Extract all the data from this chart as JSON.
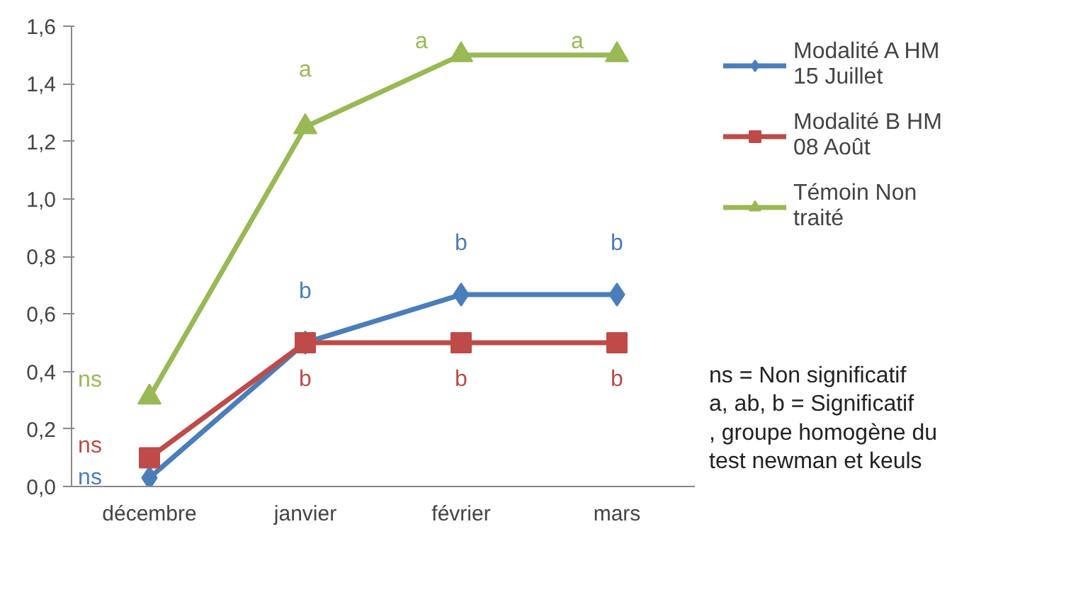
{
  "chart_data": {
    "type": "line",
    "categories": [
      "décembre",
      "janvier",
      "février",
      "mars"
    ],
    "series": [
      {
        "name": "Modalité A HM 15 Juillet",
        "color": "#4a7ebb",
        "marker": "diamond",
        "values": [
          0.03,
          0.5,
          0.667,
          0.667
        ],
        "value_labels": [
          "ns",
          "b",
          "b",
          "b"
        ]
      },
      {
        "name": "Modalité B HM 08 Août",
        "color": "#be4b48",
        "marker": "square",
        "values": [
          0.1,
          0.5,
          0.5,
          0.5
        ],
        "value_labels": [
          "ns",
          "b",
          "b",
          "b"
        ]
      },
      {
        "name": "Témoin Non traité",
        "color": "#98b954",
        "marker": "triangle",
        "values": [
          0.31,
          1.25,
          1.5,
          1.5
        ],
        "value_labels": [
          "ns",
          "a",
          "a",
          "a"
        ]
      }
    ],
    "ylim": [
      0,
      1.6
    ],
    "yticks": [
      {
        "value": 0,
        "label": "0,0"
      },
      {
        "value": 0.2,
        "label": "0,2"
      },
      {
        "value": 0.4,
        "label": "0,4"
      },
      {
        "value": 0.6,
        "label": "0,6"
      },
      {
        "value": 0.8,
        "label": "0,8"
      },
      {
        "value": 1.0,
        "label": "1,0"
      },
      {
        "value": 1.2,
        "label": "1,2"
      },
      {
        "value": 1.4,
        "label": "1,4"
      },
      {
        "value": 1.6,
        "label": "1,6"
      }
    ],
    "grid": false,
    "legend": "right",
    "annotations": [
      "ns = Non significatif",
      "a, ab, b = Significatif",
      ", groupe homogène du test newman et keuls"
    ]
  }
}
